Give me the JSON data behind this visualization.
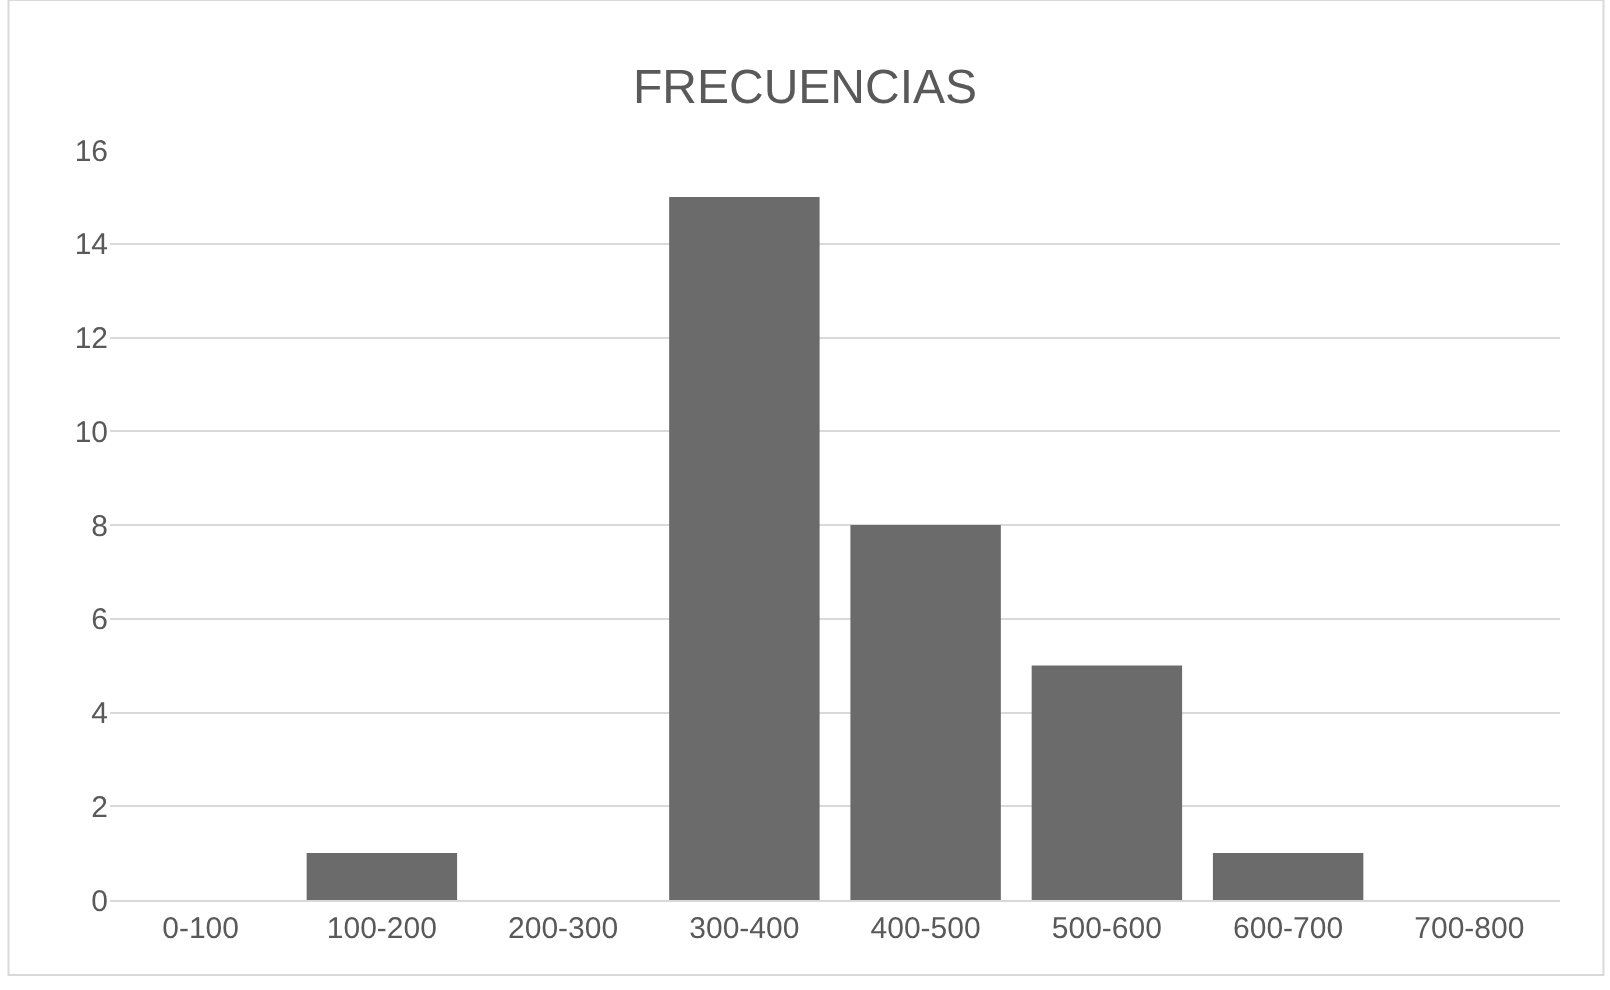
{
  "chart_data": {
    "type": "bar",
    "title": "FRECUENCIAS",
    "categories": [
      "0-100",
      "100-200",
      "200-300",
      "300-400",
      "400-500",
      "500-600",
      "600-700",
      "700-800"
    ],
    "values": [
      0,
      1,
      0,
      15,
      8,
      5,
      1,
      0
    ],
    "color": "#6b6b6b",
    "ylim": [
      0,
      16
    ],
    "yticks": [
      0,
      2,
      4,
      6,
      8,
      10,
      12,
      14,
      16
    ],
    "grid": "y"
  }
}
